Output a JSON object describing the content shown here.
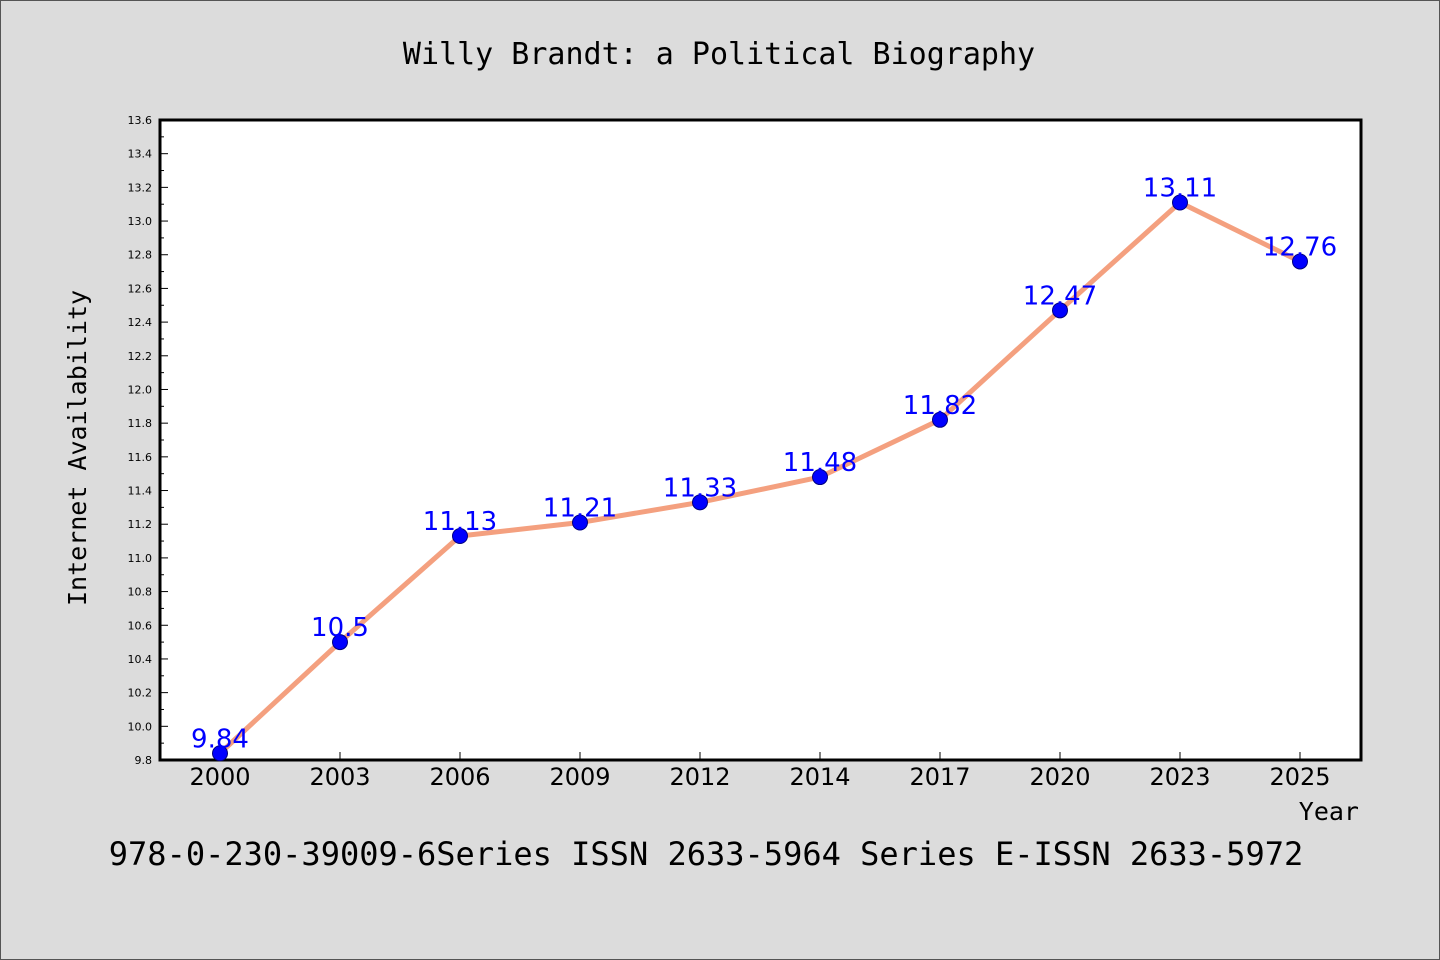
{
  "chart_data": {
    "type": "line",
    "title": "Willy Brandt: a Political Biography",
    "xlabel": "Year",
    "ylabel": "Internet Availability",
    "categories": [
      "2000",
      "2003",
      "2006",
      "2009",
      "2012",
      "2014",
      "2017",
      "2020",
      "2023",
      "2025"
    ],
    "series": [
      {
        "values": [
          9.84,
          10.5,
          11.13,
          11.21,
          11.33,
          11.48,
          11.82,
          12.47,
          13.11,
          12.76
        ],
        "data_labels": [
          "9.84",
          "10.5",
          "11.13",
          "11.21",
          "11.33",
          "11.48",
          "11.82",
          "12.47",
          "13.11",
          "12.76"
        ]
      }
    ],
    "ylim": [
      9.8,
      13.6
    ],
    "yticks": [
      "9.8",
      "10.0",
      "10.2",
      "10.4",
      "10.6",
      "10.8",
      "11.0",
      "11.2",
      "11.4",
      "11.6",
      "11.8",
      "12.0",
      "12.2",
      "12.4",
      "12.6",
      "12.8",
      "13.0",
      "13.2",
      "13.4",
      "13.6"
    ],
    "grid": false,
    "legend": "none",
    "colors": {
      "line": "#f4a07f",
      "marker": "#0000ff",
      "marker_edge": "#000080",
      "data_label": "#0000ff",
      "plot_background": "#ffffff",
      "figure_background": "#dcdcdc"
    }
  },
  "footer": {
    "text": "978-0-230-39009-6Series ISSN 2633-5964 Series E-ISSN 2633-5972"
  }
}
